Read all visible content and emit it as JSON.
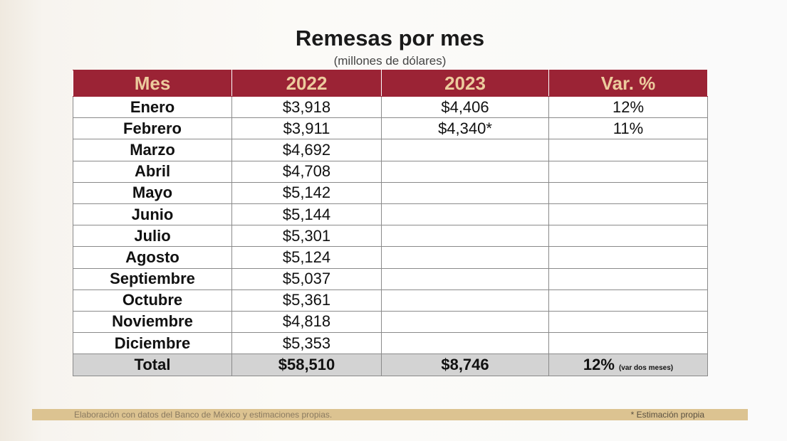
{
  "title": "Remesas por mes",
  "subtitle": "(millones de dólares)",
  "table": {
    "header": [
      "Mes",
      "2022",
      "2023",
      "Var. %"
    ],
    "rows": [
      [
        "Enero",
        "$3,918",
        "$4,406",
        "12%"
      ],
      [
        "Febrero",
        "$3,911",
        "$4,340*",
        "11%"
      ],
      [
        "Marzo",
        "$4,692"
      ],
      [
        "Abril",
        "$4,708"
      ],
      [
        "Mayo",
        "$5,142"
      ],
      [
        "Junio",
        "$5,144"
      ],
      [
        "Julio",
        "$5,301"
      ],
      [
        "Agosto",
        "$5,124"
      ],
      [
        "Septiembre",
        "$5,037"
      ],
      [
        "Octubre",
        "$5,361"
      ],
      [
        "Noviembre",
        "$4,818"
      ],
      [
        "Diciembre",
        "$5,353"
      ]
    ],
    "total": [
      "Total",
      "$58,510",
      "$8,746",
      "12%"
    ],
    "total_note": "(var dos meses)"
  },
  "footer": {
    "source": "Elaboración con datos del Banco de México y estimaciones propias.",
    "note": "* Estimación propia"
  }
}
